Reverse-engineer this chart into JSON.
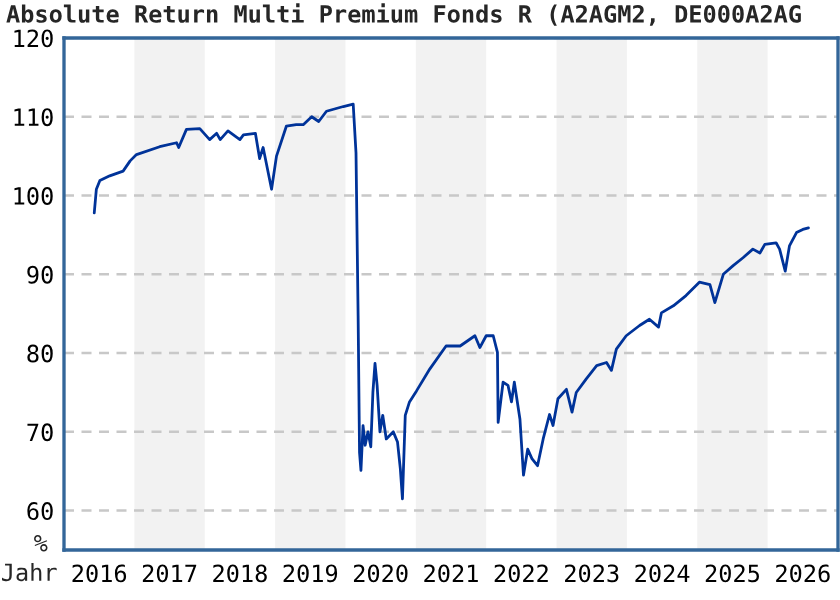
{
  "chart_data": {
    "type": "line",
    "title": "Absolute Return Multi Premium Fonds R (A2AGM2, DE000A2AG",
    "xlabel": "Jahr",
    "ylabel": "%",
    "xlim": [
      2016,
      2027
    ],
    "xticks": [
      {
        "value": 2016.5,
        "label": "2016"
      },
      {
        "value": 2017.5,
        "label": "2017"
      },
      {
        "value": 2018.5,
        "label": "2018"
      },
      {
        "value": 2019.5,
        "label": "2019"
      },
      {
        "value": 2020.5,
        "label": "2020"
      },
      {
        "value": 2021.5,
        "label": "2021"
      },
      {
        "value": 2022.5,
        "label": "2022"
      },
      {
        "value": 2023.5,
        "label": "2023"
      },
      {
        "value": 2024.5,
        "label": "2024"
      },
      {
        "value": 2025.5,
        "label": "2025"
      },
      {
        "value": 2026.5,
        "label": "2026"
      }
    ],
    "ylim": [
      55,
      120
    ],
    "yticks": [
      60,
      70,
      80,
      90,
      100,
      110,
      120
    ],
    "grid": "y",
    "marker": "none",
    "line_style": "solid",
    "bands": [
      {
        "axis": "x",
        "from": 2017,
        "to": 2018,
        "color": "#f2f2f2"
      },
      {
        "axis": "x",
        "from": 2019,
        "to": 2020,
        "color": "#f2f2f2"
      },
      {
        "axis": "x",
        "from": 2021,
        "to": 2022,
        "color": "#f2f2f2"
      },
      {
        "axis": "x",
        "from": 2023,
        "to": 2024,
        "color": "#f2f2f2"
      },
      {
        "axis": "x",
        "from": 2025,
        "to": 2026,
        "color": "#f2f2f2"
      }
    ],
    "series": [
      {
        "color": "#003399",
        "x": [
          2016.43,
          2016.46,
          2016.51,
          2016.65,
          2016.84,
          2016.94,
          2017.03,
          2017.36,
          2017.6,
          2017.63,
          2017.74,
          2017.93,
          2018.07,
          2018.17,
          2018.22,
          2018.33,
          2018.5,
          2018.55,
          2018.72,
          2018.78,
          2018.83,
          2018.95,
          2019.02,
          2019.16,
          2019.3,
          2019.4,
          2019.52,
          2019.62,
          2019.73,
          2019.97,
          2020.11,
          2020.15,
          2020.18,
          2020.2,
          2020.22,
          2020.25,
          2020.28,
          2020.32,
          2020.36,
          2020.39,
          2020.42,
          2020.45,
          2020.49,
          2020.53,
          2020.58,
          2020.68,
          2020.74,
          2020.78,
          2020.81,
          2020.85,
          2020.91,
          2021.01,
          2021.2,
          2021.43,
          2021.63,
          2021.84,
          2021.91,
          2022.0,
          2022.1,
          2022.16,
          2022.17,
          2022.24,
          2022.31,
          2022.36,
          2022.4,
          2022.48,
          2022.53,
          2022.59,
          2022.65,
          2022.73,
          2022.81,
          2022.9,
          2022.95,
          2023.02,
          2023.14,
          2023.22,
          2023.28,
          2023.42,
          2023.57,
          2023.71,
          2023.78,
          2023.85,
          2023.99,
          2024.18,
          2024.32,
          2024.45,
          2024.49,
          2024.66,
          2024.84,
          2025.03,
          2025.18,
          2025.25,
          2025.37,
          2025.51,
          2025.65,
          2025.79,
          2025.89,
          2025.96,
          2026.12,
          2026.17,
          2026.25,
          2026.31,
          2026.41,
          2026.5,
          2026.58
        ],
        "values": [
          97.8,
          100.8,
          101.9,
          102.5,
          103.1,
          104.4,
          105.2,
          106.2,
          106.7,
          106.1,
          108.4,
          108.5,
          107.1,
          107.9,
          107.1,
          108.2,
          107.1,
          107.7,
          107.9,
          104.7,
          106.1,
          100.8,
          105.0,
          108.8,
          109.0,
          109.0,
          110.0,
          109.4,
          110.7,
          111.3,
          111.6,
          105.4,
          84.7,
          67.4,
          65.1,
          70.8,
          68.3,
          70.0,
          68.1,
          75.0,
          78.7,
          75.9,
          70.0,
          72.1,
          69.1,
          70.0,
          68.7,
          65.3,
          61.5,
          72.1,
          73.8,
          75.2,
          78.0,
          80.9,
          80.9,
          82.2,
          80.7,
          82.2,
          82.2,
          80.1,
          71.2,
          76.3,
          75.9,
          73.8,
          76.3,
          71.6,
          64.5,
          67.8,
          66.6,
          65.7,
          69.1,
          72.2,
          70.8,
          74.2,
          75.4,
          72.5,
          75.0,
          76.7,
          78.4,
          78.8,
          77.8,
          80.5,
          82.2,
          83.5,
          84.3,
          83.3,
          85.1,
          86.0,
          87.3,
          89.0,
          88.7,
          86.4,
          90.0,
          91.1,
          92.1,
          93.2,
          92.7,
          93.8,
          94.0,
          93.2,
          90.4,
          93.6,
          95.3,
          95.7,
          95.9
        ]
      }
    ]
  }
}
